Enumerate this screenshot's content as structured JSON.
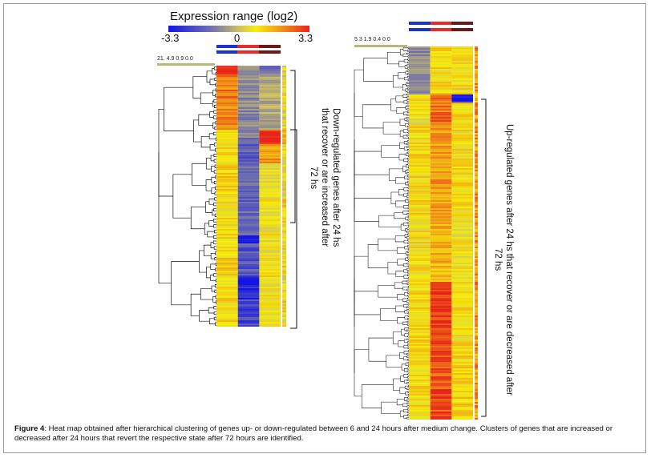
{
  "legend": {
    "title": "Expression range (log2)",
    "min_label": "-3.3",
    "mid_label": "0",
    "max_label": "3.3",
    "min": -3.3,
    "max": 3.3
  },
  "condition_colors": [
    "#1a33cc",
    "#e82a2a",
    "#6e1a14"
  ],
  "left_panel": {
    "scale_labels": "21. 4.9    0.9  0.0",
    "cluster_label": "Down-regulated genes after 24 hs that recover or are increased after 72 hs"
  },
  "right_panel": {
    "scale_labels": "5.3 1.9    0.4  0.0",
    "cluster_label": "Up-regulated genes after 24 hs that recover or are decreased after 72 hs"
  },
  "caption": {
    "label": "Figure 4",
    "text": ": Heat map obtained after hierarchical clustering of genes up- or down-regulated between 6 and 24 hours after medium change. Clusters of genes that are increased or decreased after 24 hours that revert the respective state after 72 hours are identified."
  }
}
